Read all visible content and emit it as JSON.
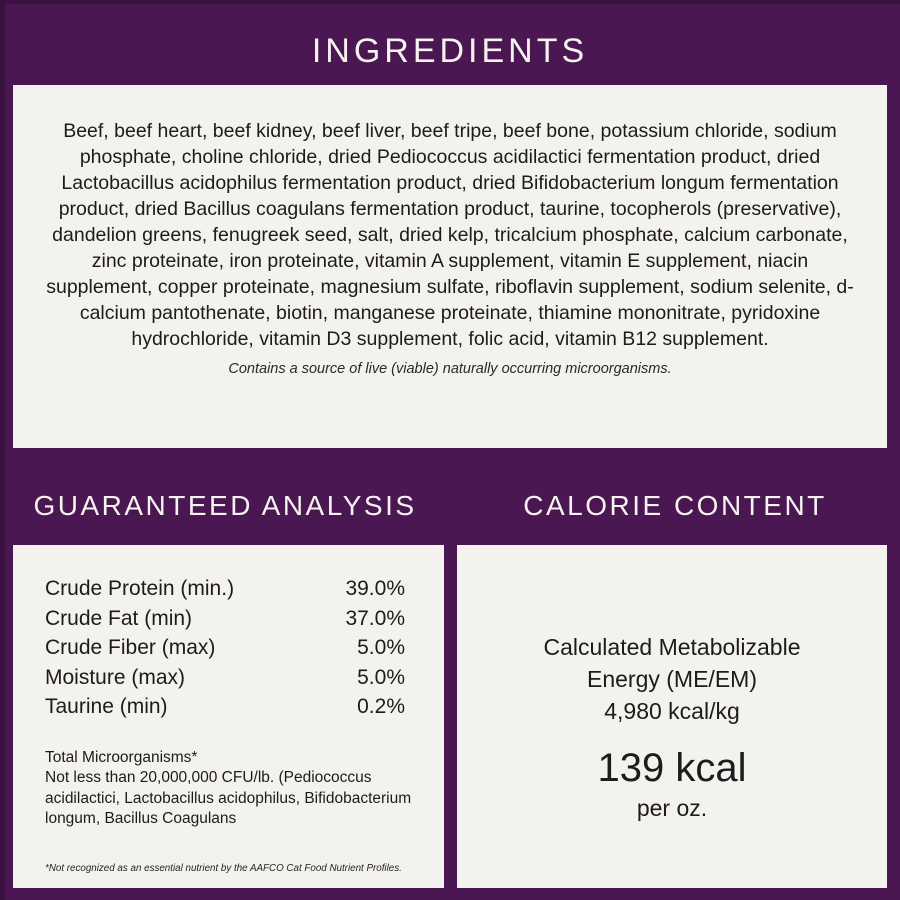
{
  "colors": {
    "background_purple": "#4a1752",
    "card_offwhite": "#f4f2ef",
    "text_dark": "#1d1b1b",
    "heading_white": "#f5f2ef"
  },
  "header": {
    "title": "INGREDIENTS"
  },
  "ingredients": {
    "text": "Beef, beef heart, beef kidney, beef liver, beef tripe, beef bone, potassium chloride, sodium phosphate, choline chloride, dried Pediococcus acidilactici fermentation product, dried Lactobacillus acidophilus fermentation product, dried Bifidobacterium longum fermentation product, dried Bacillus coagulans fermentation product, taurine, tocopherols (preservative), dandelion greens, fenugreek seed, salt, dried kelp, tricalcium phosphate, calcium carbonate, zinc proteinate, iron proteinate, vitamin A supplement, vitamin E supplement, niacin supplement, copper proteinate, magnesium sulfate, riboflavin supplement, sodium selenite, d-calcium pantothenate, biotin, manganese proteinate, thiamine mononitrate, pyridoxine hydrochloride, vitamin D3 supplement, folic acid, vitamin B12 supplement.",
    "note": "Contains a source of live (viable) naturally occurring microorganisms."
  },
  "guaranteed_analysis": {
    "title": "GUARANTEED ANALYSIS",
    "rows": [
      {
        "label": "Crude Protein (min.)",
        "value": "39.0%"
      },
      {
        "label": "Crude Fat (min)",
        "value": "37.0%"
      },
      {
        "label": "Crude Fiber (max)",
        "value": "5.0%"
      },
      {
        "label": "Moisture (max)",
        "value": "5.0%"
      },
      {
        "label": "Taurine (min)",
        "value": "0.2%"
      }
    ],
    "microorganisms_title": "Total Microorganisms*",
    "microorganisms_detail": "Not less than 20,000,000 CFU/lb. (Pediococcus acidilactici, Lactobacillus acidophilus, Bifidobacterium longum, Bacillus Coagulans",
    "footnote": "*Not recognized as an essential nutrient by the AAFCO Cat Food Nutrient Profiles."
  },
  "calorie_content": {
    "title": "CALORIE CONTENT",
    "energy_label": "Calculated Metabolizable Energy (ME/EM)",
    "energy_value": "4,980 kcal/kg",
    "kcal_value": "139 kcal",
    "kcal_unit": "per oz."
  }
}
